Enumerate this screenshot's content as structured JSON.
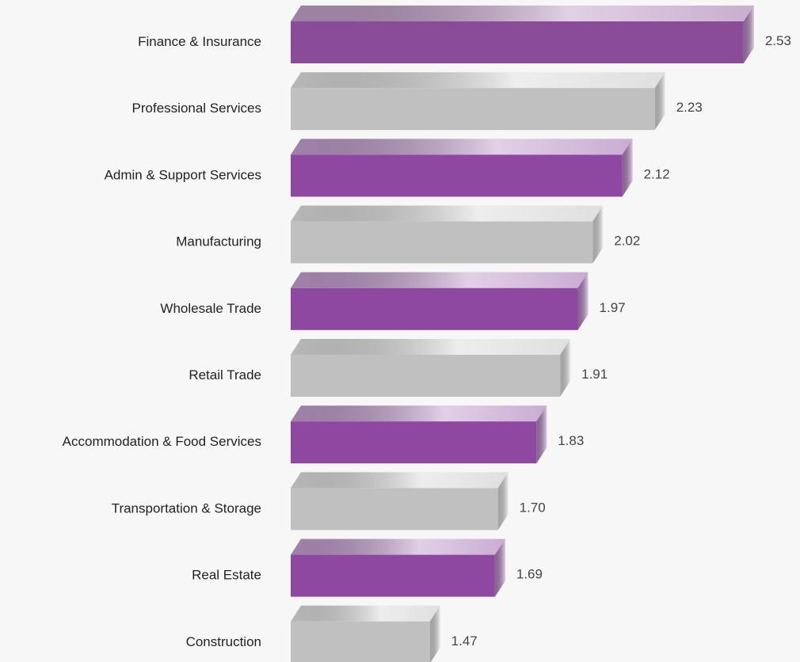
{
  "chart_data": {
    "type": "bar",
    "orientation": "horizontal",
    "categories": [
      "Finance & Insurance",
      "Professional Services",
      "Admin & Support Services",
      "Manufacturing",
      "Wholesale Trade",
      "Retail Trade",
      "Accommodation & Food Services",
      "Transportation & Storage",
      "Real Estate",
      "Construction"
    ],
    "values": [
      2.53,
      2.23,
      2.12,
      2.02,
      1.97,
      1.91,
      1.83,
      1.7,
      1.69,
      1.47
    ],
    "value_labels": [
      "2.53",
      "2.23",
      "2.12",
      "2.02",
      "1.97",
      "1.91",
      "1.83",
      "1.70",
      "1.69",
      "1.47"
    ],
    "colors": [
      "#8a4c99",
      "#c0c0c0",
      "#8e48a2",
      "#c0c0c0",
      "#8e48a2",
      "#c0c0c0",
      "#8e48a2",
      "#c0c0c0",
      "#8e48a2",
      "#c0c0c0"
    ],
    "xlim": [
      1,
      2.6
    ]
  }
}
